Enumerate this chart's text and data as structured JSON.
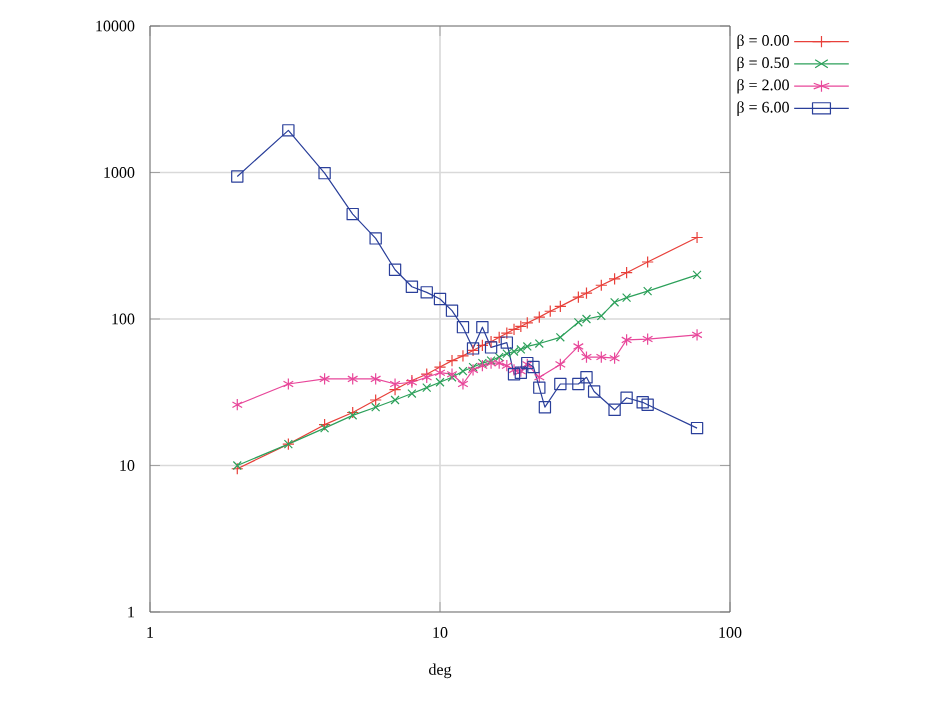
{
  "chart_data": {
    "type": "line",
    "xlabel": "deg",
    "log": "xy",
    "grid": true,
    "legend": "top right",
    "xlim": [
      1,
      100
    ],
    "ylim": [
      1,
      10000
    ],
    "xticks": [
      1,
      10,
      100
    ],
    "yticks": [
      1,
      10,
      100,
      1000,
      10000
    ],
    "series": [
      {
        "name": "β = 0.00",
        "color": "#e8403a",
        "marker": "plus",
        "x": [
          2,
          3,
          4,
          5,
          6,
          7,
          8,
          9,
          10,
          11,
          12,
          13,
          14,
          15,
          16,
          17,
          18,
          19,
          20,
          22,
          24,
          26,
          30,
          32,
          36,
          40,
          44,
          52,
          77
        ],
        "values": [
          9.5,
          14,
          19,
          23,
          28,
          33,
          38,
          42,
          47,
          52,
          56,
          61,
          66,
          70,
          75,
          80,
          85,
          89,
          94,
          103,
          113,
          122,
          141,
          150,
          170,
          188,
          207,
          245,
          360
        ]
      },
      {
        "name": "β = 0.50",
        "color": "#2ca05a",
        "marker": "x",
        "x": [
          2,
          3,
          4,
          5,
          6,
          7,
          8,
          9,
          10,
          11,
          12,
          13,
          14,
          15,
          16,
          17,
          18,
          19,
          20,
          22,
          26,
          30,
          32,
          36,
          40,
          44,
          52,
          77
        ],
        "values": [
          10,
          14,
          18,
          22,
          25,
          28,
          31,
          34,
          37,
          40,
          44,
          47,
          50,
          52,
          55,
          58,
          60,
          62,
          65,
          68,
          75,
          95,
          100,
          105,
          130,
          140,
          155,
          200
        ]
      },
      {
        "name": "β = 2.00",
        "color": "#e8479a",
        "marker": "cross",
        "x": [
          2,
          3,
          4,
          5,
          6,
          7,
          8,
          9,
          10,
          11,
          12,
          13,
          14,
          15,
          16,
          17,
          18,
          19,
          20,
          22,
          26,
          30,
          32,
          36,
          40,
          44,
          52,
          77
        ],
        "values": [
          26,
          36,
          39,
          39,
          39,
          36,
          37,
          40,
          43,
          42,
          36,
          45,
          48,
          50,
          50,
          48,
          45,
          44,
          49,
          40,
          49,
          65,
          55,
          55,
          54,
          72,
          73,
          78
        ]
      },
      {
        "name": "β = 6.00",
        "color": "#2a3f9a",
        "marker": "square",
        "x": [
          2,
          3,
          4,
          5,
          6,
          7,
          8,
          9,
          10,
          11,
          12,
          13,
          14,
          15,
          17,
          18,
          19,
          20,
          21,
          22,
          23,
          26,
          30,
          32,
          34,
          40,
          44,
          50,
          52,
          77
        ],
        "values": [
          940,
          1940,
          990,
          520,
          355,
          217,
          166,
          152,
          137,
          114,
          88,
          63,
          88,
          64,
          69,
          42,
          43,
          50,
          47,
          34,
          25,
          36,
          36,
          40,
          32,
          24,
          29,
          27,
          26,
          18
        ]
      }
    ]
  }
}
